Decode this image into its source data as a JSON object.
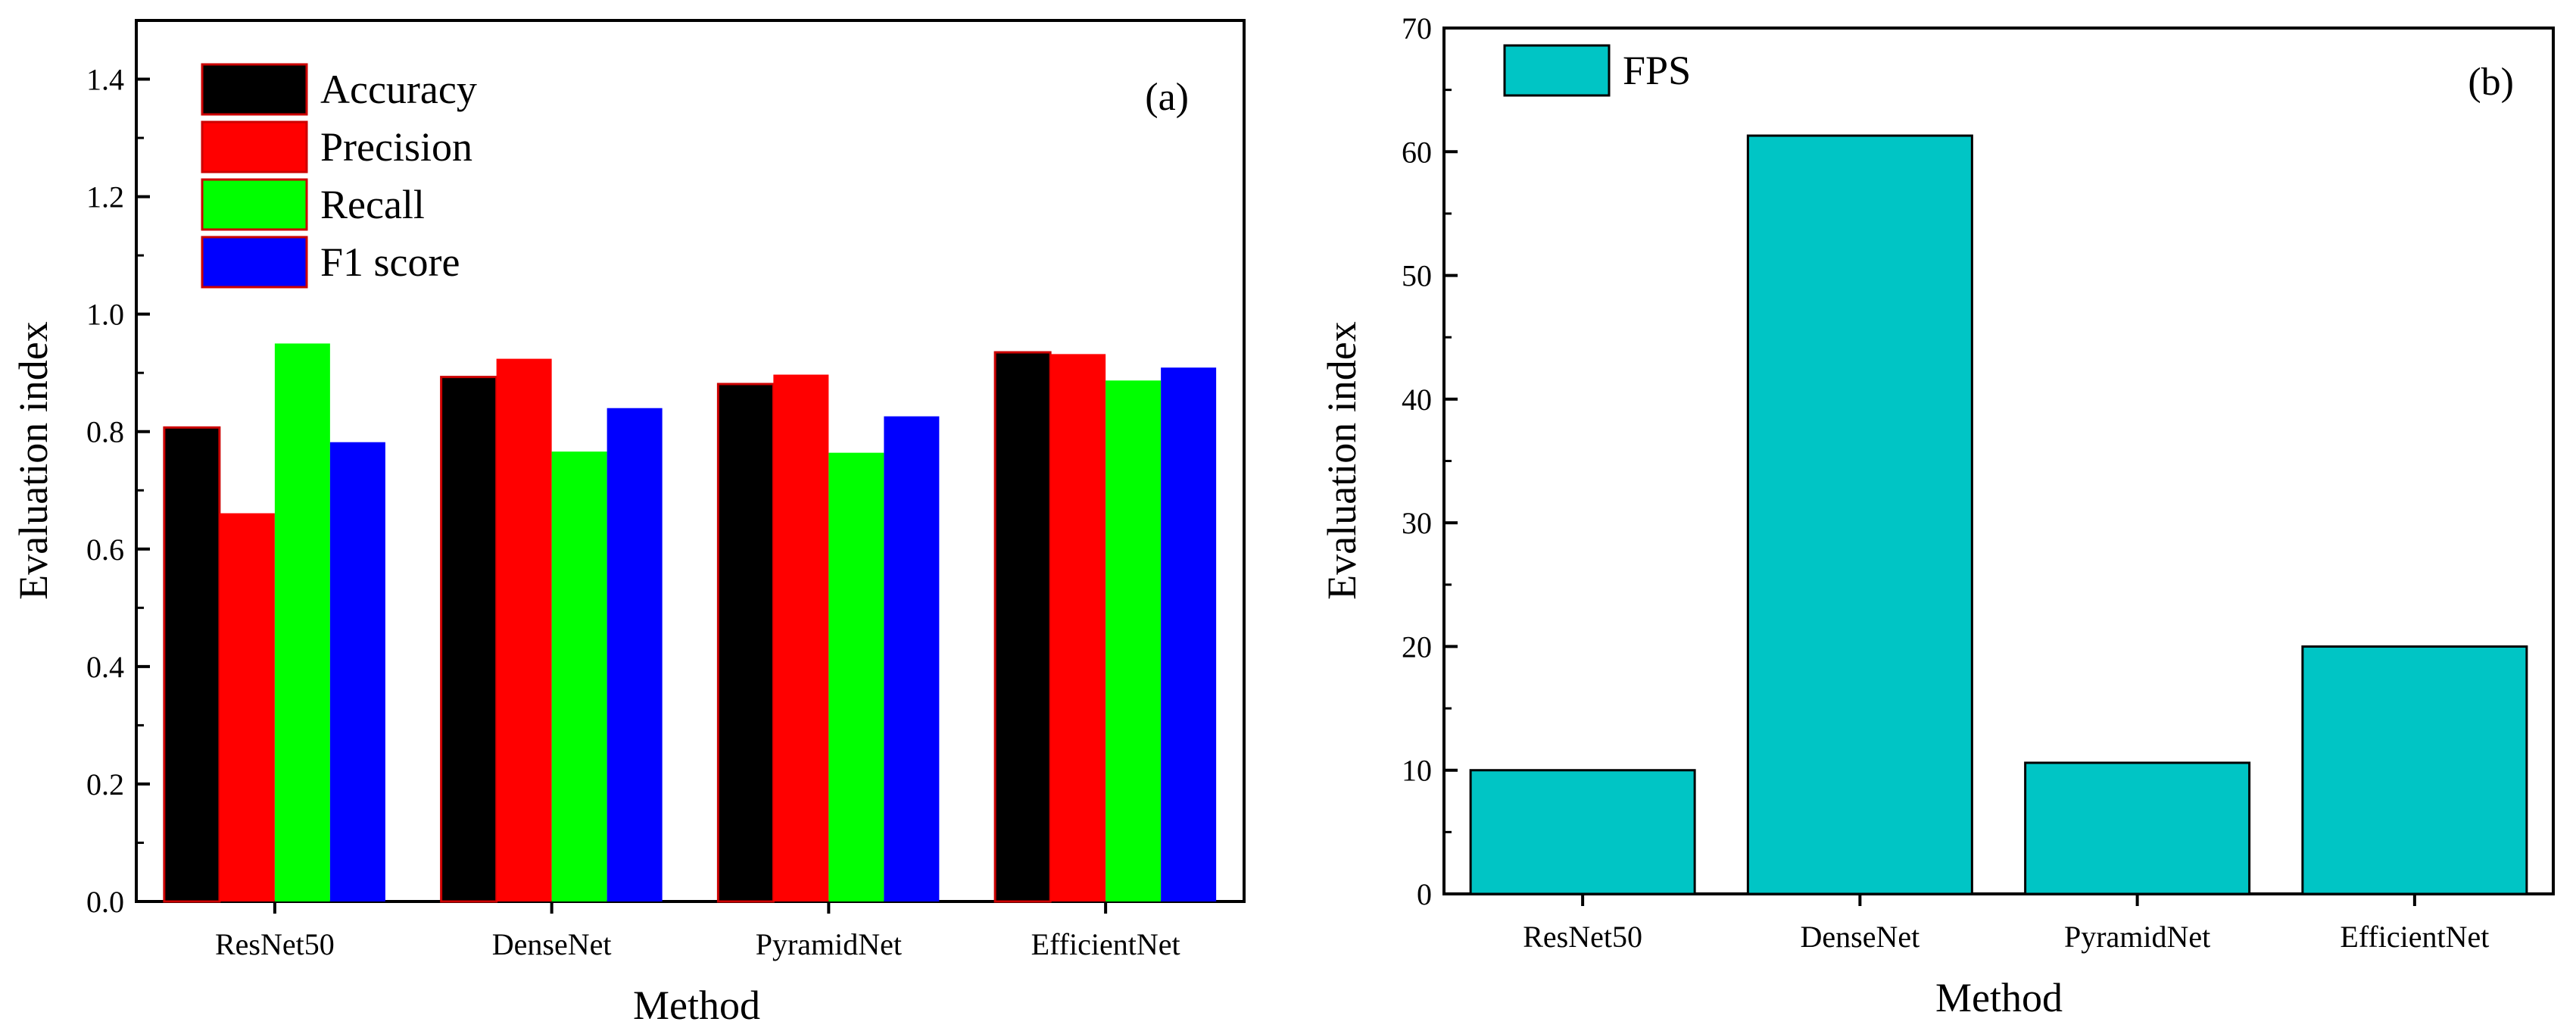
{
  "chart_data": [
    {
      "type": "bar",
      "panel_label": "(a)",
      "categories": [
        "ResNet50",
        "DenseNet",
        "PyramidNet",
        "EfficientNet"
      ],
      "series": [
        {
          "name": "Accuracy",
          "color": "#000000",
          "values": [
            0.807,
            0.893,
            0.881,
            0.935
          ]
        },
        {
          "name": "Precision",
          "color": "#ff0000",
          "values": [
            0.661,
            0.924,
            0.897,
            0.932
          ]
        },
        {
          "name": "Recall",
          "color": "#00ff00",
          "values": [
            0.95,
            0.766,
            0.764,
            0.887
          ]
        },
        {
          "name": "F1 score",
          "color": "#0000ff",
          "values": [
            0.782,
            0.84,
            0.826,
            0.909
          ]
        }
      ],
      "xlabel": "Method",
      "ylabel": "Evaluation index",
      "ylim": [
        0,
        1.5
      ],
      "yticks": [
        "0.0",
        "0.2",
        "0.4",
        "0.6",
        "0.8",
        "1.0",
        "1.2",
        "1.4"
      ],
      "legend_placement": "top-left",
      "grid": false,
      "bar_outline_color": "#cc0000"
    },
    {
      "type": "bar",
      "panel_label": "(b)",
      "categories": [
        "ResNet50",
        "DenseNet",
        "PyramidNet",
        "EfficientNet"
      ],
      "series": [
        {
          "name": "FPS",
          "color": "#00c5c5",
          "values": [
            10.0,
            61.3,
            10.6,
            20.0
          ]
        }
      ],
      "xlabel": "Method",
      "ylabel": "Evaluation index",
      "ylim": [
        0,
        70
      ],
      "yticks": [
        "0",
        "10",
        "20",
        "30",
        "40",
        "50",
        "60",
        "70"
      ],
      "legend_placement": "top-left",
      "grid": false,
      "bar_outline_color": "#000000"
    }
  ]
}
